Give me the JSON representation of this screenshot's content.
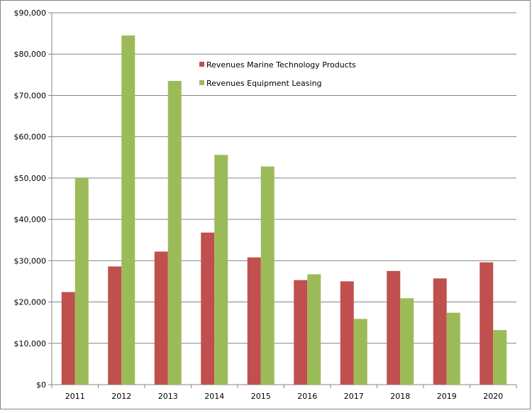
{
  "chart_data": {
    "type": "bar",
    "title": "",
    "xlabel": "",
    "ylabel": "",
    "categories": [
      "2011",
      "2012",
      "2013",
      "2014",
      "2015",
      "2016",
      "2017",
      "2018",
      "2019",
      "2020"
    ],
    "series": [
      {
        "name": "Revenues Marine Technology Products",
        "color": "#C0504D",
        "values": [
          22400,
          28600,
          32200,
          36800,
          30800,
          25300,
          25000,
          27500,
          25700,
          29600
        ]
      },
      {
        "name": "Revenues Equipment Leasing",
        "color": "#9BBB59",
        "values": [
          50000,
          84500,
          73500,
          55600,
          52800,
          26700,
          15900,
          20900,
          17400,
          13200
        ]
      }
    ],
    "ylim": [
      0,
      90000
    ],
    "yticks": [
      0,
      10000,
      20000,
      30000,
      40000,
      50000,
      60000,
      70000,
      80000,
      90000
    ],
    "ytick_labels": [
      "$0",
      "$10,000",
      "$20,000",
      "$30,000",
      "$40,000",
      "$50,000",
      "$60,000",
      "$70,000",
      "$80,000",
      "$90,000"
    ],
    "grid": true,
    "legend": "upper-center"
  }
}
